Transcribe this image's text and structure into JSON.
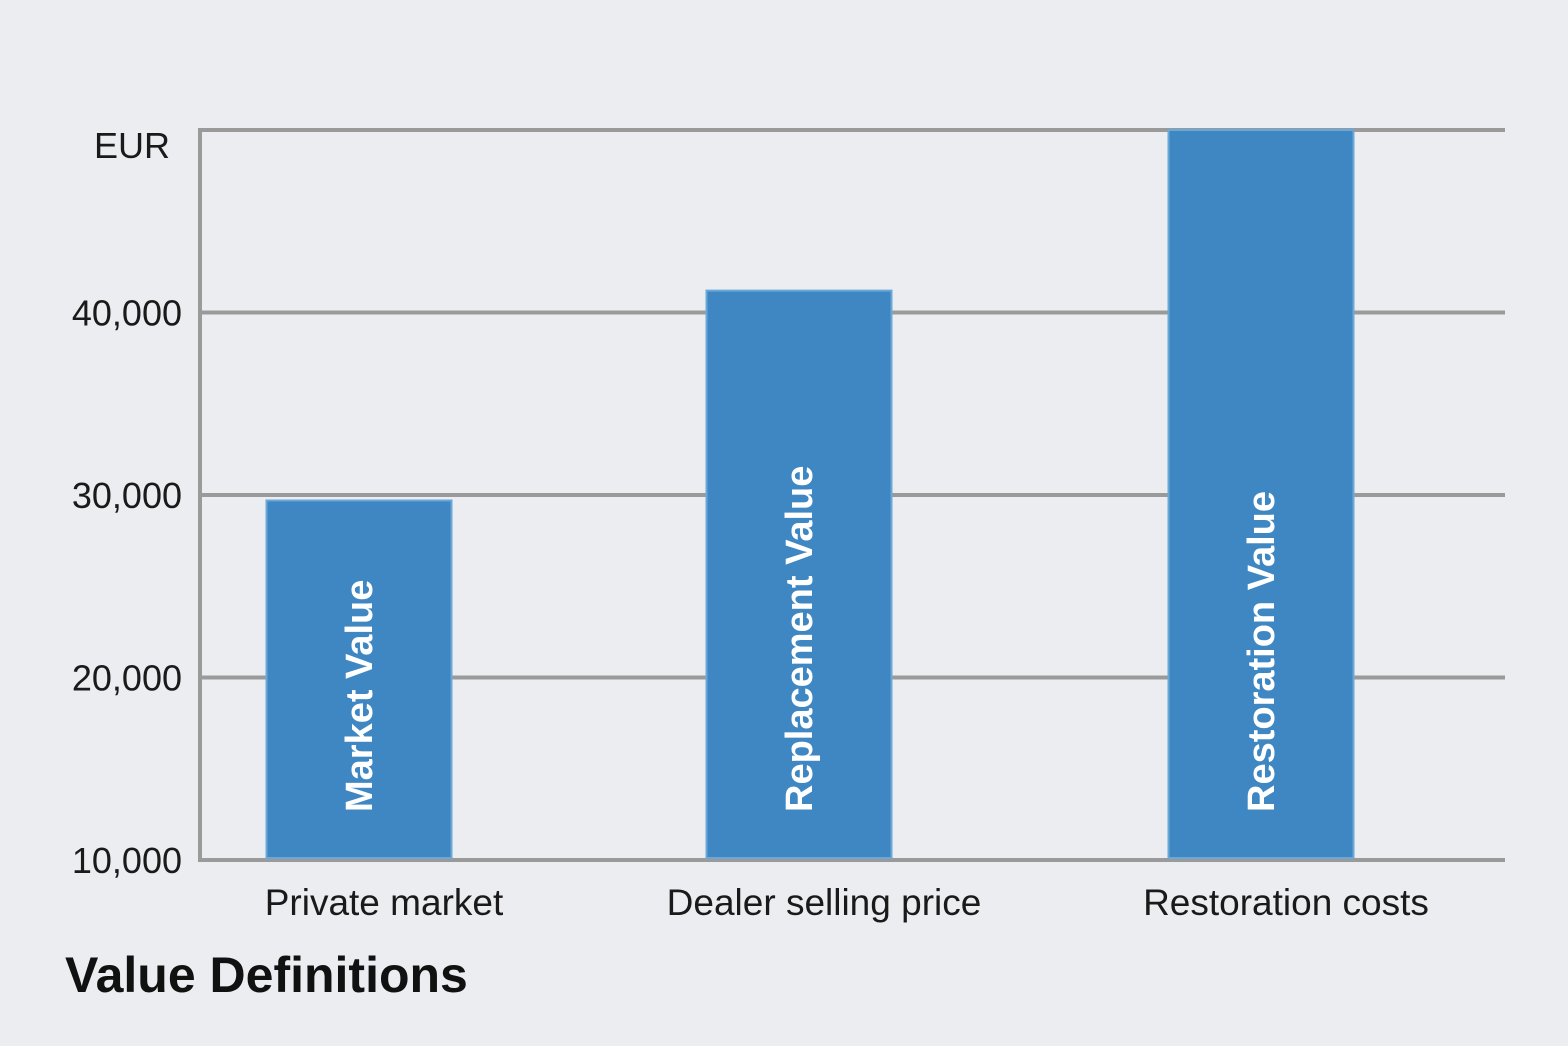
{
  "chart_data": {
    "type": "bar",
    "title": "Value Definitions",
    "unit_label": "EUR",
    "categories": [
      "Private market",
      "Dealer selling price",
      "Restoration costs"
    ],
    "bar_labels": [
      "Market Value",
      "Replacement Value",
      "Restoration Value"
    ],
    "values": [
      29700,
      41200,
      50000
    ],
    "y_ticks": [
      {
        "value": 10000,
        "label": "10,000"
      },
      {
        "value": 20000,
        "label": "20,000"
      },
      {
        "value": 30000,
        "label": "30,000"
      },
      {
        "value": 40000,
        "label": "40,000"
      }
    ],
    "ylim": [
      10000,
      50000
    ],
    "grid": true,
    "colors": {
      "bar": "#3f87c2",
      "bar_edge": "#6aa8d8",
      "grid": "#9a9a9a",
      "background": "#ecedf1"
    }
  }
}
